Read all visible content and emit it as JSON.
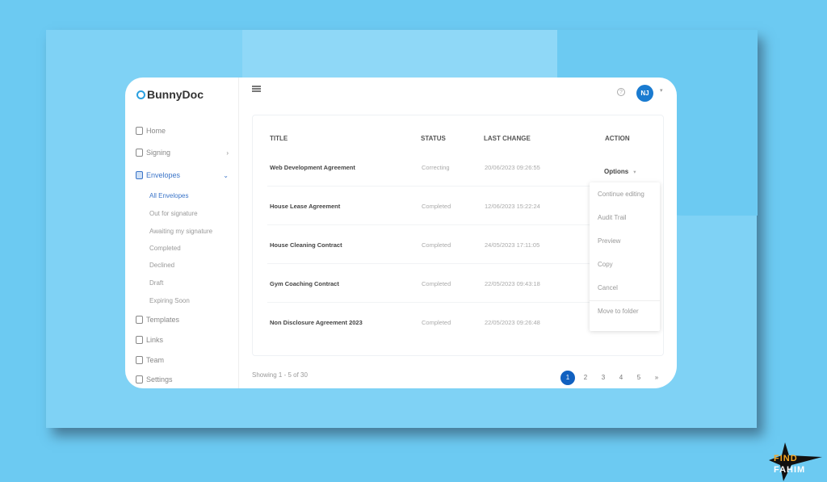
{
  "app": {
    "name": "BunnyDoc",
    "avatar_initials": "NJ",
    "help_icon": "?"
  },
  "sidebar": {
    "items": [
      {
        "label": "Home"
      },
      {
        "label": "Signing"
      },
      {
        "label": "Envelopes"
      },
      {
        "label": "Templates"
      },
      {
        "label": "Links"
      },
      {
        "label": "Team"
      },
      {
        "label": "Settings"
      }
    ],
    "envelopes_sub": [
      "All Envelopes",
      "Out for signature",
      "Awaiting my signature",
      "Completed",
      "Declined",
      "Draft",
      "Expiring Soon"
    ]
  },
  "table": {
    "headers": [
      "TITLE",
      "STATUS",
      "LAST CHANGE",
      "ACTION"
    ],
    "rows": [
      {
        "title": "Web Development Agreement",
        "status": "Correcting",
        "last_change": "20/06/2023 09:26:55"
      },
      {
        "title": "House Lease Agreement",
        "status": "Completed",
        "last_change": "12/06/2023 15:22:24"
      },
      {
        "title": "House Cleaning Contract",
        "status": "Completed",
        "last_change": "24/05/2023 17:11:05"
      },
      {
        "title": "Gym Coaching Contract",
        "status": "Completed",
        "last_change": "22/05/2023 09:43:18"
      },
      {
        "title": "Non Disclosure Agreement 2023",
        "status": "Completed",
        "last_change": "22/05/2023 09:26:48"
      }
    ],
    "options_label": "Options",
    "options_menu": [
      "Continue editing",
      "Audit Trail",
      "Preview",
      "Copy",
      "Cancel",
      "Move to folder"
    ]
  },
  "pagination": {
    "showing": "Showing 1 - 5 of 30",
    "pages": [
      "1",
      "2",
      "3",
      "4",
      "5",
      "»"
    ],
    "current": "1"
  },
  "watermark": {
    "line1": "FIND",
    "line2": "FAHIM"
  },
  "colors": {
    "accent": "#1060c0",
    "background": "#6ccaf2",
    "active_nav": "#3a74c8"
  }
}
